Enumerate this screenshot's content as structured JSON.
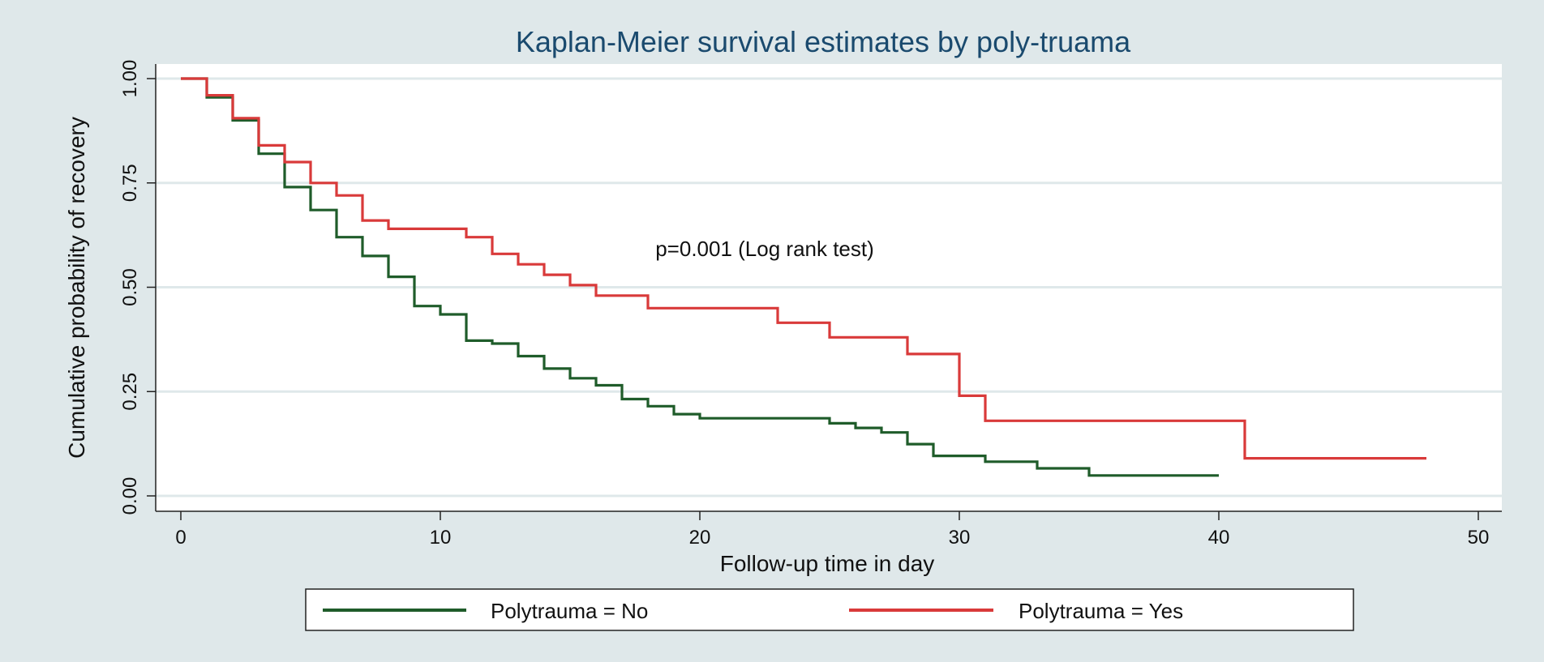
{
  "chart_data": {
    "type": "line",
    "subtype": "kaplan-meier-step",
    "title": "Kaplan-Meier survival estimates by poly-truama",
    "xlabel": "Follow-up time in day",
    "ylabel": "Cumulative probability of recovery",
    "xlim": [
      0,
      50
    ],
    "ylim": [
      0,
      1
    ],
    "x_ticks": [
      0,
      10,
      20,
      30,
      40,
      50
    ],
    "x_tick_labels": [
      "0",
      "10",
      "20",
      "30",
      "40",
      "50"
    ],
    "y_ticks": [
      0,
      0.25,
      0.5,
      0.75,
      1
    ],
    "y_tick_labels": [
      "0.00",
      "0.25",
      "0.50",
      "0.75",
      "1.00"
    ],
    "grid": "horizontal",
    "legend_position": "bottom",
    "annotation": "p=0.001 (Log rank test)",
    "annotation_at": [
      22.5,
      0.575
    ],
    "series": [
      {
        "name": "Polytrauma = No",
        "color": "#1f5c2a",
        "x": [
          0,
          1,
          2,
          3,
          4,
          5,
          6,
          7,
          8,
          9,
          10,
          11,
          12,
          13,
          14,
          15,
          16,
          17,
          18,
          19,
          20,
          24,
          25,
          26,
          27,
          28,
          29,
          31,
          33,
          35,
          40
        ],
        "y": [
          1.0,
          0.955,
          0.9,
          0.82,
          0.74,
          0.685,
          0.62,
          0.575,
          0.525,
          0.455,
          0.435,
          0.372,
          0.365,
          0.335,
          0.305,
          0.282,
          0.265,
          0.232,
          0.215,
          0.196,
          0.186,
          0.186,
          0.174,
          0.163,
          0.152,
          0.124,
          0.096,
          0.082,
          0.066,
          0.049,
          0.049
        ]
      },
      {
        "name": "Polytrauma = Yes",
        "color": "#d93a3a",
        "x": [
          0,
          1,
          2,
          3,
          4,
          5,
          6,
          7,
          8,
          11,
          12,
          13,
          14,
          15,
          16,
          18,
          23,
          25,
          28,
          30,
          31,
          41,
          48
        ],
        "y": [
          1.0,
          0.96,
          0.905,
          0.84,
          0.8,
          0.75,
          0.72,
          0.66,
          0.64,
          0.62,
          0.58,
          0.555,
          0.53,
          0.505,
          0.48,
          0.45,
          0.415,
          0.38,
          0.34,
          0.24,
          0.18,
          0.09,
          0.09
        ]
      }
    ]
  }
}
